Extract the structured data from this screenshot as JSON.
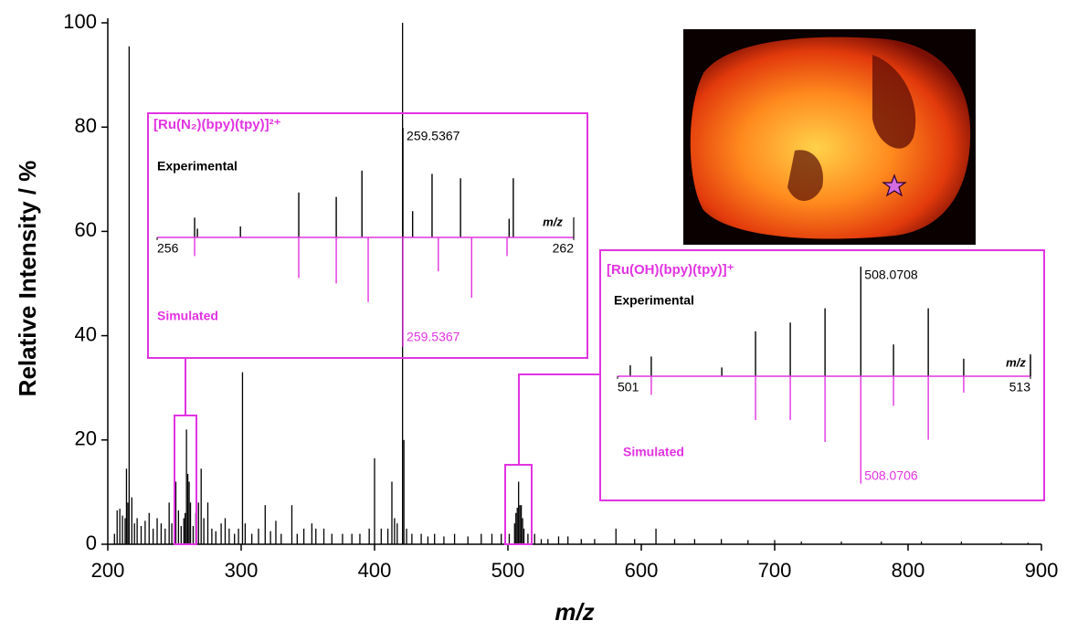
{
  "chart_data": [
    {
      "type": "stem",
      "xlabel": "m/z",
      "ylabel": "Relative Intensity / %",
      "color": "#000000",
      "xlim": [
        200,
        900
      ],
      "ylim": [
        0,
        100
      ],
      "xticks": [
        200,
        300,
        400,
        500,
        600,
        700,
        800,
        900
      ],
      "yticks": [
        0,
        20,
        40,
        60,
        80,
        100
      ],
      "x": [
        205,
        207,
        209,
        211,
        213,
        214,
        215,
        216,
        218,
        220,
        222,
        225,
        228,
        231,
        234,
        237,
        240,
        243,
        246,
        248,
        251,
        253,
        255,
        257,
        258,
        259,
        260,
        261,
        262,
        264,
        266,
        268,
        270,
        272,
        275,
        278,
        281,
        285,
        288,
        291,
        295,
        298,
        301,
        303,
        308,
        313,
        318,
        322,
        326,
        330,
        338,
        342,
        347,
        353,
        356,
        362,
        368,
        376,
        383,
        389,
        396,
        400,
        405,
        410,
        413,
        415,
        417,
        421,
        422,
        424,
        428,
        435,
        440,
        445,
        452,
        460,
        470,
        480,
        488,
        495,
        501,
        505,
        506,
        507,
        508,
        509,
        510,
        511,
        512,
        515,
        520,
        525,
        530,
        538,
        545,
        555,
        565,
        581,
        595,
        611,
        625,
        640,
        660,
        680,
        700,
        720,
        750,
        780,
        810,
        840,
        870,
        890
      ],
      "values": [
        2,
        6.5,
        6.8,
        5.5,
        5,
        14.5,
        8,
        95.5,
        9,
        4,
        5,
        3.5,
        4.5,
        6,
        3,
        5,
        4,
        3,
        8,
        4,
        12,
        6.5,
        3.5,
        5,
        6,
        22,
        13.5,
        12,
        8,
        3.5,
        6,
        8,
        14.5,
        5,
        8,
        3,
        2.5,
        4,
        5,
        3,
        2,
        3,
        33,
        4,
        2,
        3,
        7.5,
        2.5,
        4.5,
        2,
        7.5,
        2,
        3,
        4,
        3,
        3,
        2,
        2,
        2,
        2,
        3,
        16.5,
        3,
        3,
        12,
        5,
        4,
        100,
        20,
        3,
        2,
        2,
        1.5,
        2,
        1.5,
        2,
        1.5,
        2,
        2,
        2,
        2,
        4,
        6,
        7,
        12,
        7.5,
        7.5,
        5,
        3,
        2,
        2,
        1,
        1,
        1.5,
        1.5,
        1,
        1,
        3,
        1,
        3,
        1,
        1,
        1,
        0.8,
        0.8,
        0.5,
        0.5,
        0.5,
        0.5,
        0.5,
        0.3,
        0.3
      ]
    },
    {
      "type": "mirror",
      "title": "[Ru(N₂)(bpy)(tpy)]²⁺",
      "xlabel": "m/z",
      "xlim": [
        256,
        262
      ],
      "xticks": [
        256,
        262
      ],
      "ylim": [
        0,
        100
      ],
      "series": [
        {
          "name": "Experimental",
          "color": "#000000",
          "peak_label": "259.5367",
          "x": [
            256.54,
            256.58,
            257.2,
            258.04,
            258.58,
            258.95,
            259.54,
            259.68,
            259.96,
            260.37,
            261.07,
            261.13
          ],
          "values": [
            18,
            8,
            10,
            41,
            37,
            61,
            100,
            24,
            58,
            54,
            17,
            54
          ]
        },
        {
          "name": "Simulated",
          "color": "#e233e2",
          "peak_label": "259.5367",
          "x": [
            256.54,
            258.04,
            258.58,
            259.04,
            259.54,
            260.05,
            260.53,
            261.04
          ],
          "values": [
            17,
            37,
            42,
            59,
            100,
            31,
            55,
            17
          ]
        }
      ]
    },
    {
      "type": "mirror",
      "title": "[Ru(OH)(bpy)(tpy)]⁺",
      "xlabel": "m/z",
      "xlim": [
        501,
        513
      ],
      "xticks": [
        501,
        513
      ],
      "ylim": [
        0,
        100
      ],
      "series": [
        {
          "name": "Experimental",
          "color": "#000000",
          "peak_label": "508.0708",
          "x": [
            501.37,
            501.98,
            504.03,
            505.01,
            506.02,
            507.03,
            508.07,
            509.02,
            510.03,
            511.06,
            513.0
          ],
          "values": [
            10,
            18,
            8,
            41,
            49,
            62,
            100,
            29,
            62,
            16,
            20
          ]
        },
        {
          "name": "Simulated",
          "color": "#e233e2",
          "peak_label": "508.0706",
          "x": [
            501.98,
            505.01,
            506.02,
            507.03,
            508.07,
            509.02,
            510.03,
            511.06
          ],
          "values": [
            17,
            40,
            40,
            60,
            98,
            27,
            58,
            15
          ]
        }
      ]
    }
  ]
}
